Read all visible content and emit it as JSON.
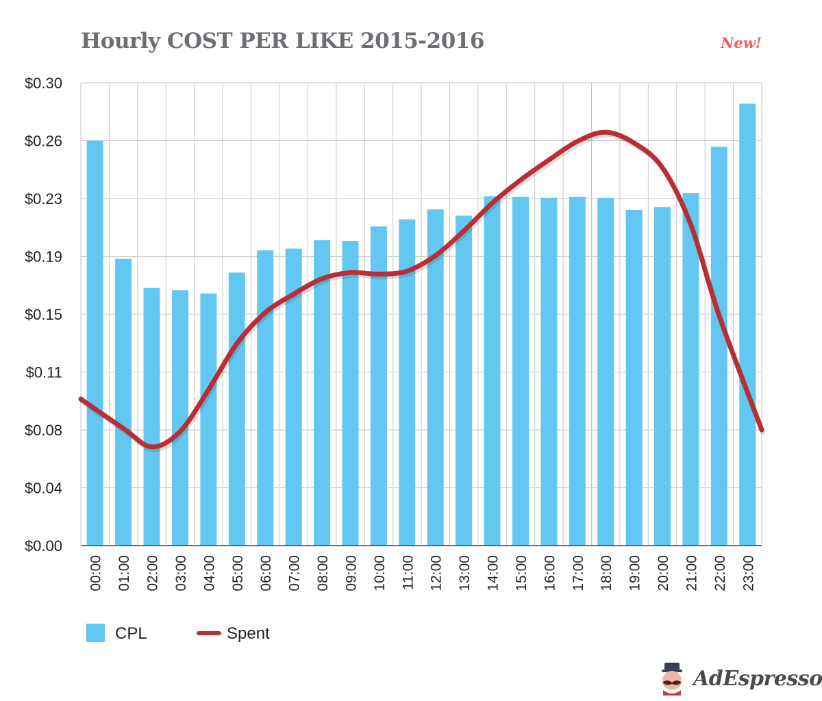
{
  "title": "Hourly COST PER LIKE 2015-2016",
  "badge": "New!",
  "brand": "AdEspresso",
  "colors": {
    "bar": "#63c8f1",
    "line": "#b82e35",
    "grid": "#c6c6c6",
    "title": "#6d6e73",
    "badge": "#ef5f5b"
  },
  "chart_data": {
    "type": "bar",
    "title": "Hourly COST PER LIKE 2015-2016",
    "xlabel": "",
    "ylabel": "",
    "grid": true,
    "legend_position": "bottom-left",
    "ylim": [
      0,
      0.3
    ],
    "yticks": [
      0,
      0.0375,
      0.075,
      0.1125,
      0.15,
      0.1875,
      0.225,
      0.2625,
      0.3
    ],
    "ytick_labels": [
      "$0.00",
      "$0.04",
      "$0.08",
      "$0.11",
      "$0.15",
      "$0.19",
      "$0.23",
      "$0.26",
      "$0.30"
    ],
    "categories": [
      "00:00",
      "01:00",
      "02:00",
      "03:00",
      "04:00",
      "05:00",
      "06:00",
      "07:00",
      "08:00",
      "09:00",
      "10:00",
      "11:00",
      "12:00",
      "13:00",
      "14:00",
      "15:00",
      "16:00",
      "17:00",
      "18:00",
      "19:00",
      "20:00",
      "21:00",
      "22:00",
      "23:00"
    ],
    "series": [
      {
        "name": "CPL",
        "type": "bar",
        "values": [
          0.2625,
          0.186,
          0.167,
          0.1655,
          0.1635,
          0.177,
          0.1915,
          0.1925,
          0.198,
          0.1975,
          0.207,
          0.2115,
          0.218,
          0.214,
          0.2265,
          0.226,
          0.2255,
          0.226,
          0.2255,
          0.2175,
          0.2195,
          0.2285,
          0.2585,
          0.2865
        ]
      },
      {
        "name": "Spent",
        "type": "line",
        "values": [
          0.095,
          0.076,
          0.064,
          0.074,
          0.101,
          0.131,
          0.151,
          0.163,
          0.173,
          0.177,
          0.176,
          0.178,
          0.188,
          0.204,
          0.222,
          0.237,
          0.25,
          0.262,
          0.268,
          0.261,
          0.245,
          0.208,
          0.149,
          0.075
        ]
      }
    ]
  }
}
